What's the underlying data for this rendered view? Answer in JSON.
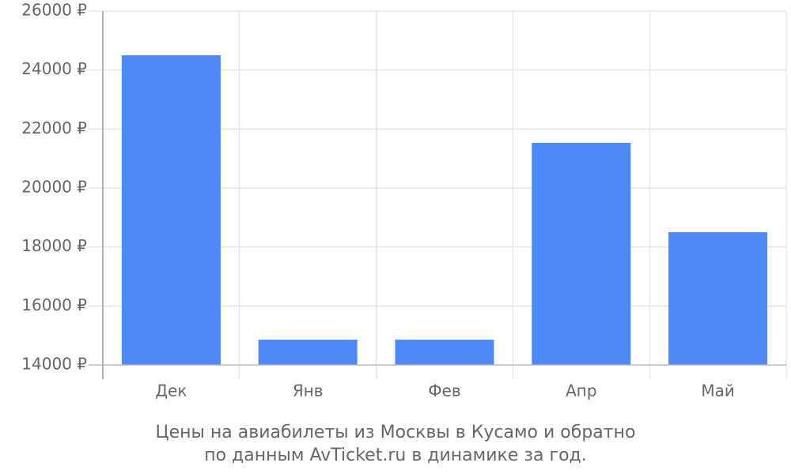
{
  "chart_data": {
    "type": "bar",
    "caption": [
      "Цены на авиабилеты из Москвы в Кусамо и обратно",
      "по данным AvTicket.ru в динамике за год."
    ],
    "categories": [
      "Дек",
      "Янв",
      "Фев",
      "Апр",
      "Май"
    ],
    "values": [
      24500,
      14860,
      14860,
      21530,
      18500
    ],
    "color": "#4d89f9",
    "ylim": [
      14000,
      26000
    ],
    "yticks": [
      {
        "value": 14000,
        "label": "14000 ₽"
      },
      {
        "value": 16000,
        "label": "16000 ₽"
      },
      {
        "value": 18000,
        "label": "18000 ₽"
      },
      {
        "value": 20000,
        "label": "20000 ₽"
      },
      {
        "value": 22000,
        "label": "22000 ₽"
      },
      {
        "value": 24000,
        "label": "24000 ₽"
      },
      {
        "value": 26000,
        "label": "26000 ₽"
      }
    ],
    "grid": true
  }
}
